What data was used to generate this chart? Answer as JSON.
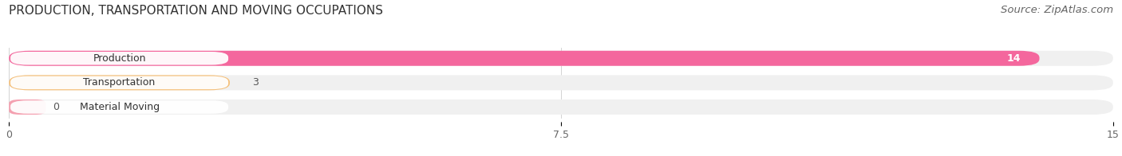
{
  "title": "PRODUCTION, TRANSPORTATION AND MOVING OCCUPATIONS",
  "source": "Source: ZipAtlas.com",
  "categories": [
    "Production",
    "Transportation",
    "Material Moving"
  ],
  "values": [
    14,
    3,
    0
  ],
  "bar_colors": [
    "#f4679d",
    "#f5c07a",
    "#f4a0b0"
  ],
  "bar_bg_color": "#f0f0f0",
  "label_bg_color": "#ffffff",
  "xlim": [
    0,
    15
  ],
  "xticks": [
    0,
    7.5,
    15
  ],
  "title_fontsize": 11,
  "source_fontsize": 9.5,
  "label_fontsize": 9,
  "value_fontsize": 9,
  "figsize": [
    14.06,
    1.96
  ],
  "dpi": 100
}
